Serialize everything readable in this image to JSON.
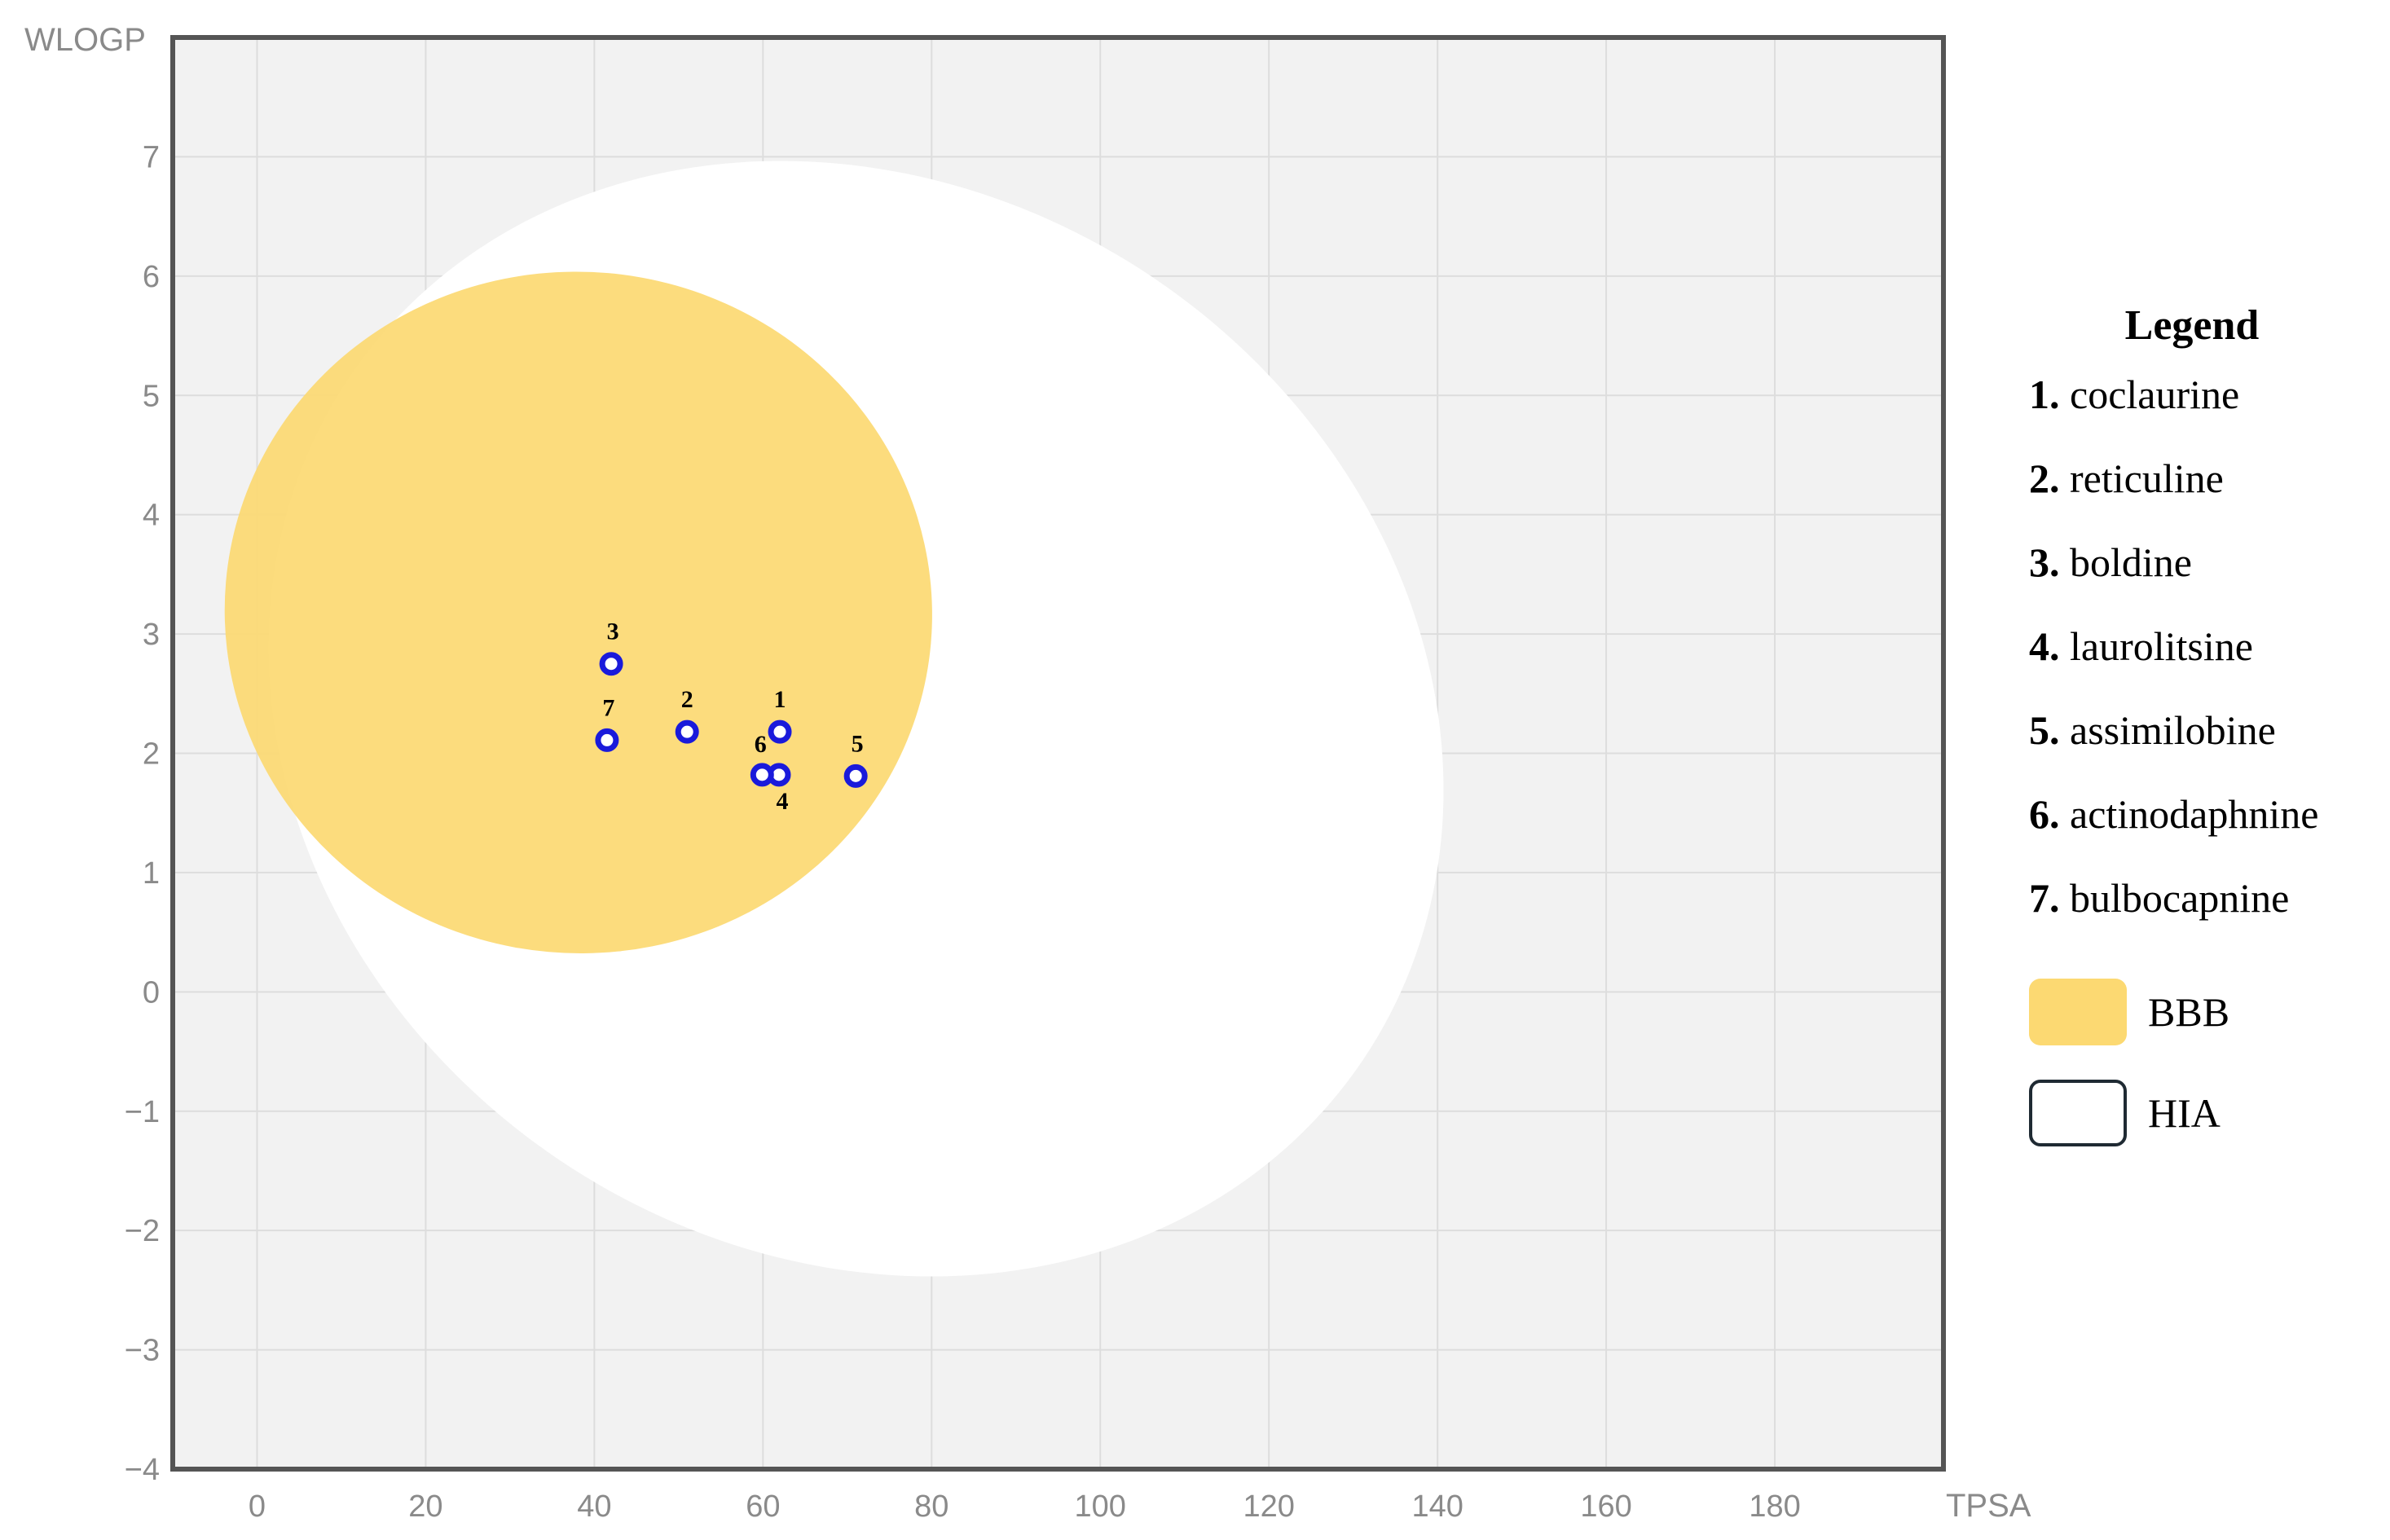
{
  "chart_data": {
    "type": "scatter",
    "xlabel": "TPSA",
    "ylabel": "WLOGP",
    "xlim": [
      -10,
      200
    ],
    "ylim": [
      -4,
      8
    ],
    "xticks": [
      0,
      20,
      40,
      60,
      80,
      100,
      120,
      140,
      160,
      180
    ],
    "yticks": [
      -4,
      -3,
      -2,
      -1,
      0,
      1,
      2,
      3,
      4,
      5,
      6,
      7
    ],
    "ytick_labels": [
      "−4",
      "−3",
      "−2",
      "−1",
      "0",
      "1",
      "2",
      "3",
      "4",
      "5",
      "6",
      "7"
    ],
    "grid": true,
    "colors": {
      "plot_background": "#f2f2f2",
      "hia_region": "#ffffff",
      "bbb_region": "#fcd972",
      "point_edge": "#1a1adb",
      "grid": "#dddddd",
      "frame": "#555555"
    },
    "regions": [
      {
        "name": "HIA",
        "center": [
          71.05,
          2.29
        ],
        "semi_axes": [
          142.08,
          8.74
        ],
        "angle_deg": -19.37,
        "tilt": 0.0
      },
      {
        "name": "BBB",
        "center": [
          38.11,
          3.18
        ],
        "semi_axes": [
          82.28,
          5.6
        ],
        "angle_deg": 0.0
      }
    ],
    "points": [
      {
        "label": "1",
        "x": 62,
        "y": 2.18
      },
      {
        "label": "2",
        "x": 51,
        "y": 2.18
      },
      {
        "label": "3",
        "x": 42,
        "y": 2.75
      },
      {
        "label": "4",
        "x": 61.9,
        "y": 1.82
      },
      {
        "label": "5",
        "x": 71,
        "y": 1.81
      },
      {
        "label": "6",
        "x": 59.9,
        "y": 1.82
      },
      {
        "label": "7",
        "x": 41.5,
        "y": 2.11
      }
    ],
    "legend": {
      "title": "Legend",
      "placement": "right",
      "items": [
        {
          "num": "1.",
          "name": "coclaurine"
        },
        {
          "num": "2.",
          "name": "reticuline"
        },
        {
          "num": "3.",
          "name": "boldine"
        },
        {
          "num": "4.",
          "name": "laurolitsine"
        },
        {
          "num": "5.",
          "name": "assimilobine"
        },
        {
          "num": "6.",
          "name": "actinodaphnine"
        },
        {
          "num": "7.",
          "name": "bulbocapnine"
        }
      ],
      "regions": [
        {
          "name": "BBB",
          "color": "#fcd972"
        },
        {
          "name": "HIA",
          "color": "#ffffff"
        }
      ]
    }
  }
}
